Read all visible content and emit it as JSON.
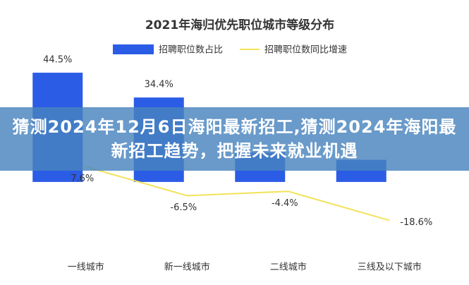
{
  "chart_data": {
    "type": "bar_line",
    "title": "2021年海归优先职位城市等级分布",
    "categories": [
      "一线城市",
      "新一线城市",
      "二线城市",
      "三线及以下城市"
    ],
    "series": [
      {
        "name": "招聘职位数占比",
        "color": "#2b5ce6",
        "type": "bar",
        "values": [
          44.5,
          34.4,
          12,
          9
        ],
        "value_labels": [
          "44.5%",
          "34.4%",
          null,
          null
        ]
      },
      {
        "name": "招聘职位数同比增速",
        "color": "#f2e35a",
        "type": "line",
        "axis": "y2",
        "values": [
          7.6,
          -6.5,
          -4.4,
          -18.6
        ],
        "value_labels": [
          "7.6%",
          "-6.5%",
          "-4.4%",
          "-18.6%"
        ]
      }
    ],
    "ylim": [
      -21,
      54
    ],
    "y2lim": [
      -25,
      65
    ]
  },
  "banner": {
    "text": "猜测2024年12月6日海阳最新招工,猜测2024年海阳最新招工趋势，把握未来就业机遇"
  }
}
